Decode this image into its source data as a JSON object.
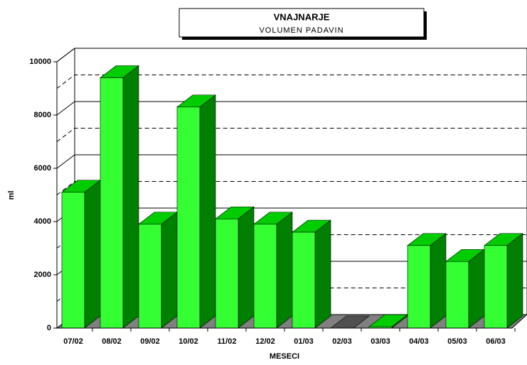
{
  "chart_data": {
    "type": "bar3d",
    "title": "VNAJNARJE",
    "subtitle": "VOLUMEN PADAVIN",
    "x_label": "MESECI",
    "y_label": "ml",
    "categories": [
      "07/02",
      "08/02",
      "09/02",
      "10/02",
      "11/02",
      "12/02",
      "01/03",
      "02/03",
      "03/03",
      "04/03",
      "05/03",
      "06/03"
    ],
    "values": [
      5100,
      9400,
      3900,
      8300,
      4100,
      3900,
      3600,
      0,
      50,
      3100,
      2500,
      3100
    ],
    "color": "#33ff33",
    "side_color": "#008000",
    "top_color": "#00cc00",
    "ylim": [
      0,
      10000
    ],
    "yticks": [
      0,
      2000,
      4000,
      6000,
      8000,
      10000
    ],
    "minor_yticks": [
      1000,
      3000,
      5000,
      7000,
      9000
    ],
    "grid": true
  }
}
